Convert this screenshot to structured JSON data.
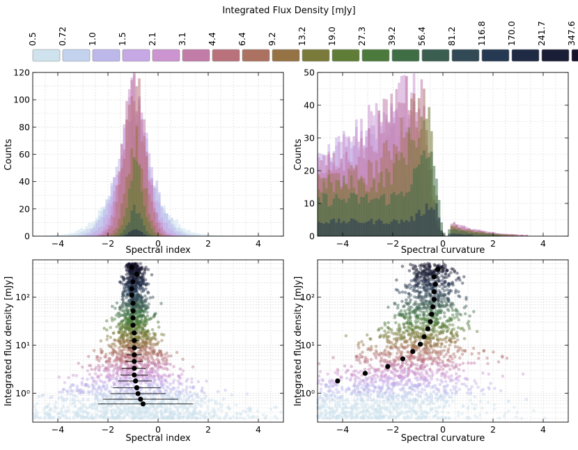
{
  "colorbar": {
    "title": "Integrated Flux Density [mJy]",
    "tick_labels": [
      "0.5",
      "0.72",
      "1.0",
      "1.5",
      "2.1",
      "3.1",
      "4.4",
      "6.4",
      "9.2",
      "13.2",
      "19.0",
      "27.3",
      "39.2",
      "56.4",
      "81.2",
      "116.8",
      "170.0",
      "241.7",
      "347.6"
    ],
    "bin_colors": [
      "#cfe3ee",
      "#c3d3ee",
      "#bdb8ea",
      "#c5a8e4",
      "#cc94d0",
      "#c27ca8",
      "#b9727c",
      "#ab7262",
      "#957345",
      "#7a7a3a",
      "#5f7d37",
      "#4b7a3c",
      "#3f6e45",
      "#3a5e4f",
      "#314a55",
      "#263952",
      "#1f2a45",
      "#1a1e36",
      "#14112a"
    ]
  },
  "chart_data": [
    {
      "id": "hist-spectral-index",
      "type": "bar",
      "title": "",
      "xlabel": "Spectral index",
      "ylabel": "Counts",
      "xlim": [
        -5,
        5
      ],
      "ylim": [
        0,
        120
      ],
      "xticks": [
        -4,
        -2,
        0,
        2,
        4
      ],
      "xtick_labels": [
        "−4",
        "−2",
        "0",
        "2",
        "4"
      ],
      "yticks": [
        0,
        20,
        40,
        60,
        80,
        100,
        120
      ],
      "ytick_labels": [
        "0",
        "20",
        "40",
        "60",
        "80",
        "100",
        "120"
      ],
      "grid": true,
      "bin_width": 0.1,
      "series_shape": "gaussian peaks per flux bin",
      "peaks": [
        {
          "bin": "0.5-0.72",
          "center": -0.95,
          "sigma": 1.0,
          "peak": 40,
          "tail": "high-side"
        },
        {
          "bin": "0.72-1.0",
          "center": -0.95,
          "sigma": 0.85,
          "peak": 55
        },
        {
          "bin": "1.0-1.5",
          "center": -0.95,
          "sigma": 0.7,
          "peak": 80
        },
        {
          "bin": "1.5-2.1",
          "center": -0.95,
          "sigma": 0.6,
          "peak": 90
        },
        {
          "bin": "2.1-3.1",
          "center": -0.95,
          "sigma": 0.5,
          "peak": 100
        },
        {
          "bin": "3.1-4.4",
          "center": -0.95,
          "sigma": 0.45,
          "peak": 110
        },
        {
          "bin": "4.4-6.4",
          "center": -0.95,
          "sigma": 0.4,
          "peak": 112
        },
        {
          "bin": "9.2-13.2",
          "center": -0.9,
          "sigma": 0.35,
          "peak": 70
        },
        {
          "bin": "19.0-27.3",
          "center": -0.9,
          "sigma": 0.3,
          "peak": 50
        },
        {
          "bin": "56.4-81.2",
          "center": -0.9,
          "sigma": 0.25,
          "peak": 20
        },
        {
          "bin": "170.0-241.7",
          "center": -0.9,
          "sigma": 0.2,
          "peak": 6
        }
      ]
    },
    {
      "id": "hist-spectral-curvature",
      "type": "bar",
      "title": "",
      "xlabel": "Spectral curvature",
      "ylabel": "Counts",
      "xlim": [
        -5,
        5
      ],
      "ylim": [
        0,
        50
      ],
      "xticks": [
        -4,
        -2,
        0,
        2,
        4
      ],
      "xtick_labels": [
        "−4",
        "−2",
        "0",
        "2",
        "4"
      ],
      "yticks": [
        0,
        10,
        20,
        30,
        40,
        50
      ],
      "ytick_labels": [
        "0",
        "10",
        "20",
        "30",
        "40",
        "50"
      ],
      "grid": true,
      "bin_width": 0.1,
      "series_shape": "skewed to negative curvature, cutoff near -0.2",
      "peaks": [
        {
          "bin": "0.72-1.0",
          "center": -3.0,
          "sigma": 1.6,
          "peak": 20
        },
        {
          "bin": "1.0-1.5",
          "center": -2.0,
          "sigma": 1.4,
          "peak": 30
        },
        {
          "bin": "1.5-2.1",
          "center": -1.6,
          "sigma": 1.2,
          "peak": 38
        },
        {
          "bin": "2.1-3.1",
          "center": -1.3,
          "sigma": 1.0,
          "peak": 44
        },
        {
          "bin": "3.1-4.4",
          "center": -1.0,
          "sigma": 0.8,
          "peak": 46
        },
        {
          "bin": "6.4-9.2",
          "center": -0.8,
          "sigma": 0.6,
          "peak": 40
        },
        {
          "bin": "13.2-19.0",
          "center": -0.6,
          "sigma": 0.5,
          "peak": 35
        },
        {
          "bin": "39.2-56.4",
          "center": -0.4,
          "sigma": 0.4,
          "peak": 25
        },
        {
          "bin": "116.8-170.0",
          "center": -0.3,
          "sigma": 0.3,
          "peak": 10
        }
      ]
    },
    {
      "id": "scatter-spectral-index",
      "type": "scatter",
      "title": "",
      "xlabel": "Spectral index",
      "ylabel": "Integrated flux density [mJy]",
      "xlim": [
        -5,
        5
      ],
      "ylim": [
        0.25,
        600
      ],
      "yscale": "log",
      "xticks": [
        -4,
        -2,
        0,
        2,
        4
      ],
      "xtick_labels": [
        "−4",
        "−2",
        "0",
        "2",
        "4"
      ],
      "yticks": [
        1,
        10,
        100
      ],
      "ytick_labels": [
        "10⁰",
        "10¹",
        "10²"
      ],
      "grid": true,
      "medians": [
        {
          "flux": 0.6,
          "x": -0.6,
          "err_low": 1.8,
          "err_high": 2.0
        },
        {
          "flux": 0.75,
          "x": -0.7,
          "err_low": 1.5,
          "err_high": 1.5
        },
        {
          "flux": 0.98,
          "x": -0.8,
          "err_low": 1.1,
          "err_high": 1.1
        },
        {
          "flux": 1.3,
          "x": -0.85,
          "err_low": 0.95,
          "err_high": 0.95
        },
        {
          "flux": 1.8,
          "x": -0.9,
          "err_low": 0.7,
          "err_high": 0.65
        },
        {
          "flux": 2.4,
          "x": -0.95,
          "err_low": 0.55,
          "err_high": 0.55
        },
        {
          "flux": 3.3,
          "x": -0.95,
          "err_low": 0.5,
          "err_high": 0.45
        },
        {
          "flux": 4.6,
          "x": -0.95,
          "err_low": 0.35,
          "err_high": 0.35
        },
        {
          "flux": 6.3,
          "x": -0.95,
          "err_low": 0.3,
          "err_high": 0.3
        },
        {
          "flux": 8.8,
          "x": -0.95,
          "err_low": 0.25,
          "err_high": 0.25
        },
        {
          "flux": 12.5,
          "x": -0.95,
          "err_low": 0.2,
          "err_high": 0.2
        },
        {
          "flux": 18,
          "x": -0.95,
          "err_low": 0.15,
          "err_high": 0.15
        },
        {
          "flux": 26,
          "x": -1.0,
          "err_low": 0.1,
          "err_high": 0.1
        },
        {
          "flux": 37,
          "x": -1.0,
          "err_low": 0.1,
          "err_high": 0.1
        },
        {
          "flux": 52,
          "x": -1.0,
          "err_low": 0.1,
          "err_high": 0.1
        },
        {
          "flux": 75,
          "x": -1.0,
          "err_low": 0.05,
          "err_high": 0.05
        },
        {
          "flux": 110,
          "x": -1.05,
          "err_low": 0.05,
          "err_high": 0.05
        },
        {
          "flux": 150,
          "x": -1.05,
          "err_low": 0.05,
          "err_high": 0.05
        },
        {
          "flux": 210,
          "x": -1.0,
          "err_low": 0.05,
          "err_high": 0.05
        },
        {
          "flux": 300,
          "x": -0.85,
          "err_low": 0.05,
          "err_high": 0.05
        },
        {
          "flux": 420,
          "x": -1.05,
          "err_low": 0.05,
          "err_high": 0.05
        }
      ]
    },
    {
      "id": "scatter-spectral-curvature",
      "type": "scatter",
      "title": "",
      "xlabel": "Spectral curvature",
      "ylabel": "Integrated flux density [mJy]",
      "xlim": [
        -5,
        5
      ],
      "ylim": [
        0.25,
        600
      ],
      "yscale": "log",
      "xticks": [
        -4,
        -2,
        0,
        2,
        4
      ],
      "xtick_labels": [
        "−4",
        "−2",
        "0",
        "2",
        "4"
      ],
      "yticks": [
        1,
        10,
        100
      ],
      "ytick_labels": [
        "10⁰",
        "10¹",
        "10²"
      ],
      "grid": true,
      "medians": [
        {
          "flux": 1.8,
          "x": -4.2
        },
        {
          "flux": 2.6,
          "x": -3.1
        },
        {
          "flux": 3.6,
          "x": -2.2
        },
        {
          "flux": 5.2,
          "x": -1.6
        },
        {
          "flux": 7.4,
          "x": -1.2
        },
        {
          "flux": 10.5,
          "x": -0.9
        },
        {
          "flux": 15,
          "x": -0.75
        },
        {
          "flux": 22,
          "x": -0.6
        },
        {
          "flux": 31,
          "x": -0.5
        },
        {
          "flux": 44,
          "x": -0.45
        },
        {
          "flux": 63,
          "x": -0.4
        },
        {
          "flux": 90,
          "x": -0.35
        },
        {
          "flux": 130,
          "x": -0.35
        },
        {
          "flux": 185,
          "x": -0.3
        },
        {
          "flux": 265,
          "x": -0.35
        },
        {
          "flux": 380,
          "x": -0.2
        }
      ]
    }
  ]
}
